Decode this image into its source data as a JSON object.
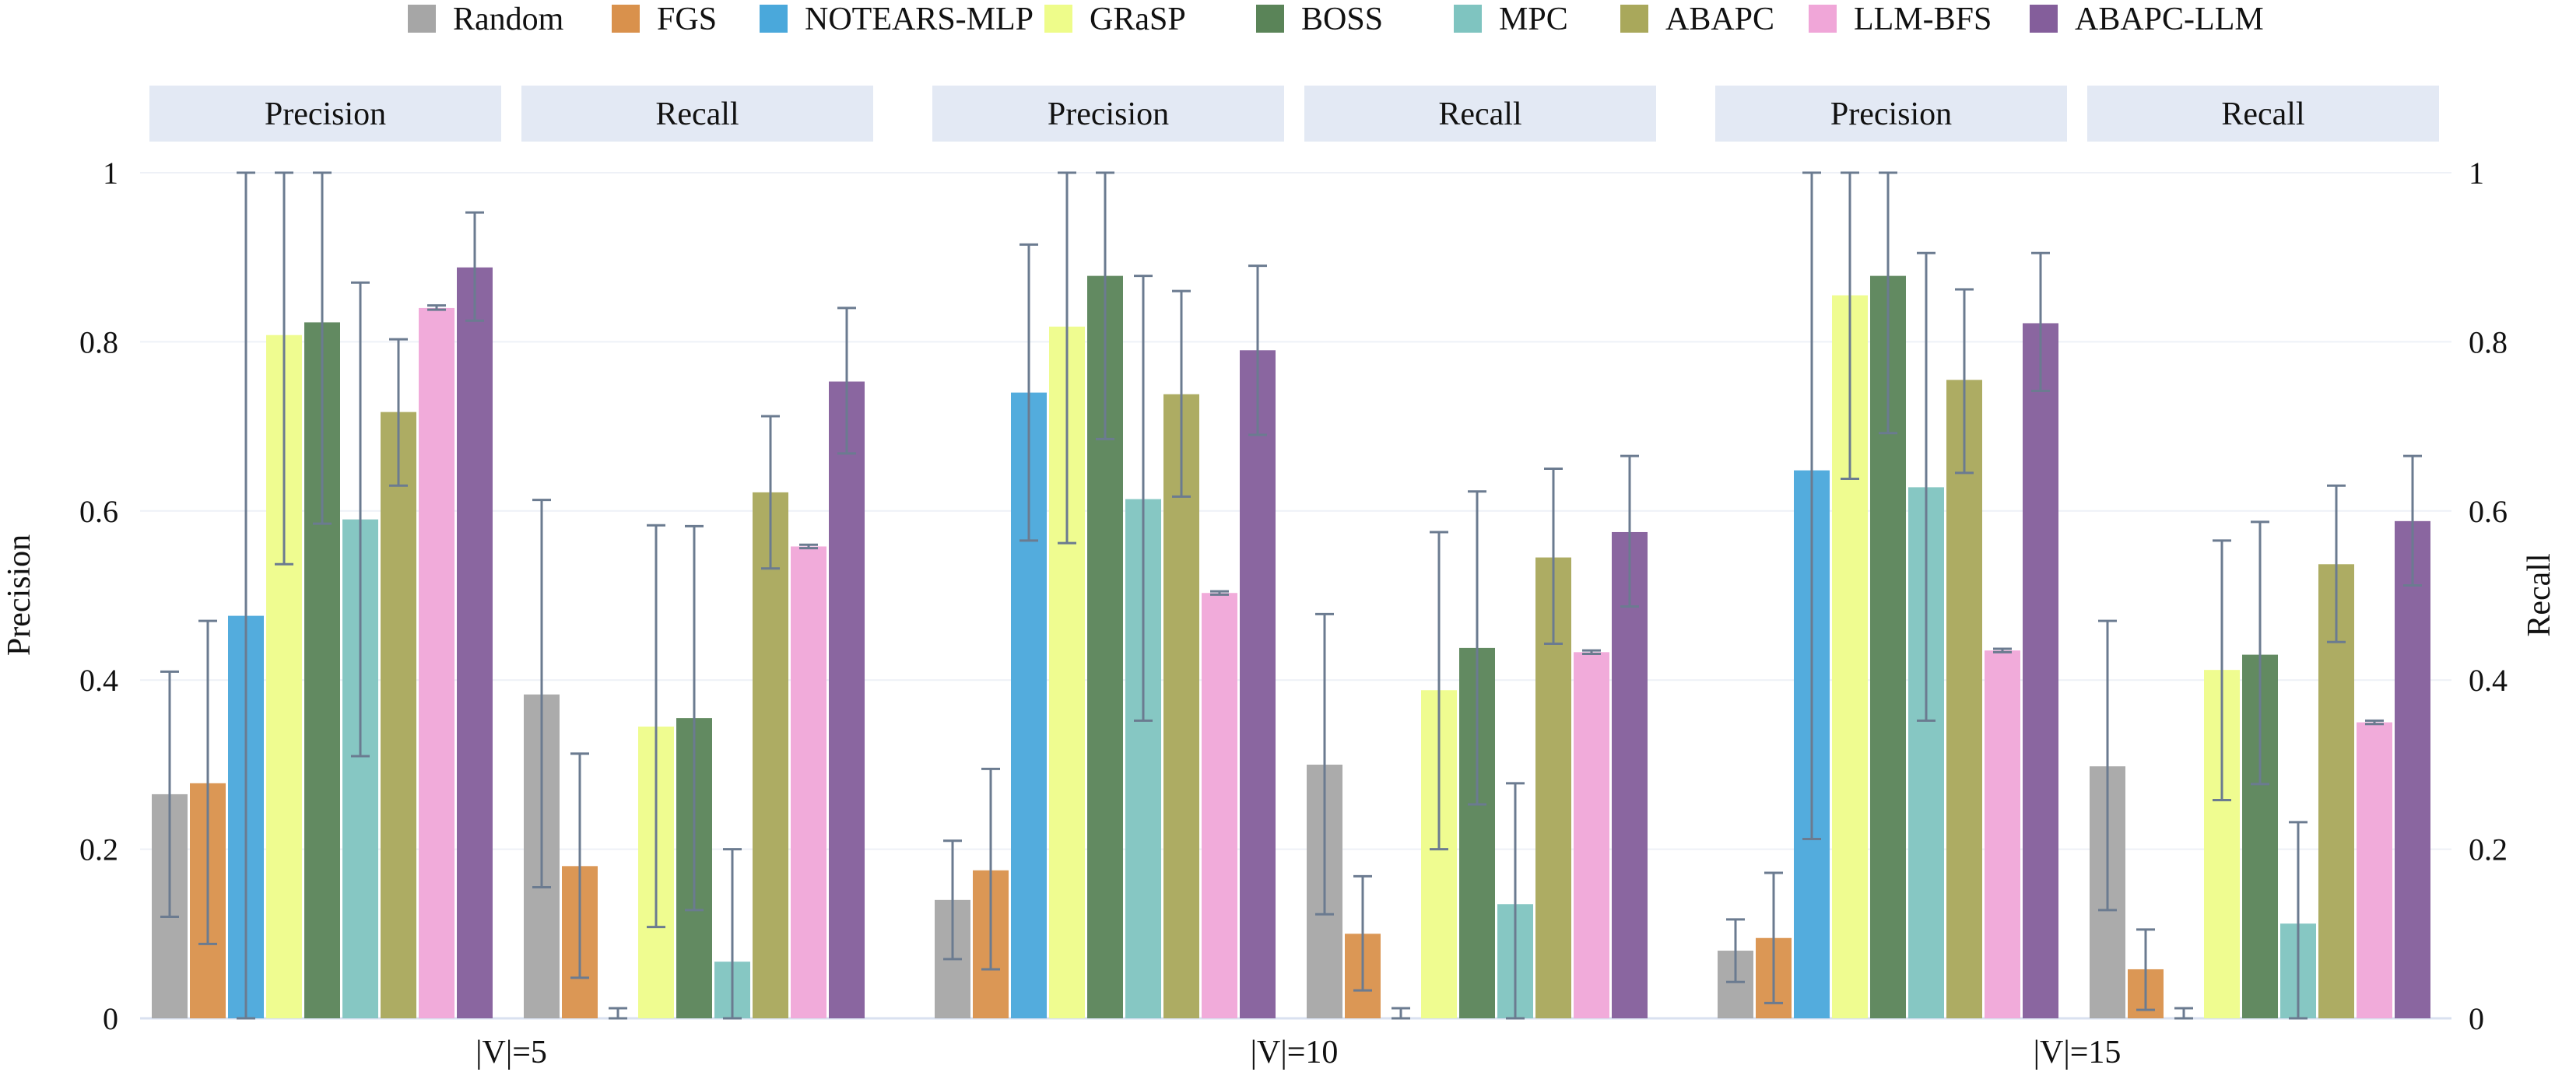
{
  "chart_data": {
    "type": "bar",
    "title": "",
    "ylabel_left": "Precision",
    "ylabel_right": "Recall",
    "ylim": [
      0,
      1
    ],
    "yticks": [
      0,
      0.2,
      0.4,
      0.6,
      0.8,
      1
    ],
    "ytick_labels": [
      "0",
      "0.2",
      "0.4",
      "0.6",
      "0.8",
      "1"
    ],
    "grid": true,
    "legend_position": "top",
    "methods": [
      {
        "name": "Random",
        "color": "#a6a6a6"
      },
      {
        "name": "FGS",
        "color": "#d9914c"
      },
      {
        "name": "NOTEARS-MLP",
        "color": "#4aa8db"
      },
      {
        "name": "GRaSP",
        "color": "#eefc8a"
      },
      {
        "name": "BOSS",
        "color": "#5a8458"
      },
      {
        "name": "MPC",
        "color": "#7fc4c0"
      },
      {
        "name": "ABAPC",
        "color": "#a9a85b"
      },
      {
        "name": "LLM-BFS",
        "color": "#f0a6d8"
      },
      {
        "name": "ABAPC-LLM",
        "color": "#845e9b"
      }
    ],
    "groups": [
      {
        "label": "|V|=5",
        "panels": [
          {
            "metric": "Precision",
            "values": [
              0.265,
              0.278,
              0.476,
              0.808,
              0.823,
              0.59,
              0.717,
              0.84,
              0.888
            ],
            "err_low": [
              0.12,
              0.088,
              0.0,
              0.537,
              0.585,
              0.31,
              0.63,
              0.838,
              0.825
            ],
            "err_high": [
              0.41,
              0.47,
              1.0,
              1.0,
              1.0,
              0.87,
              0.803,
              0.843,
              0.953
            ]
          },
          {
            "metric": "Recall",
            "values": [
              0.383,
              0.18,
              0.0,
              0.345,
              0.355,
              0.067,
              0.622,
              0.558,
              0.753
            ],
            "err_low": [
              0.155,
              0.048,
              0.0,
              0.108,
              0.128,
              0.0,
              0.532,
              0.556,
              0.668
            ],
            "err_high": [
              0.613,
              0.313,
              0.012,
              0.583,
              0.582,
              0.2,
              0.712,
              0.56,
              0.84
            ]
          }
        ]
      },
      {
        "label": "|V|=10",
        "panels": [
          {
            "metric": "Precision",
            "values": [
              0.14,
              0.175,
              0.74,
              0.818,
              0.878,
              0.614,
              0.738,
              0.503,
              0.79
            ],
            "err_low": [
              0.07,
              0.058,
              0.565,
              0.562,
              0.685,
              0.352,
              0.617,
              0.501,
              0.69
            ],
            "err_high": [
              0.21,
              0.295,
              0.915,
              1.0,
              1.0,
              0.878,
              0.86,
              0.505,
              0.89
            ]
          },
          {
            "metric": "Recall",
            "values": [
              0.3,
              0.1,
              0.0,
              0.388,
              0.438,
              0.135,
              0.545,
              0.433,
              0.575
            ],
            "err_low": [
              0.123,
              0.033,
              0.0,
              0.2,
              0.253,
              0.0,
              0.443,
              0.431,
              0.487
            ],
            "err_high": [
              0.478,
              0.168,
              0.012,
              0.575,
              0.623,
              0.278,
              0.65,
              0.435,
              0.665
            ]
          }
        ]
      },
      {
        "label": "|V|=15",
        "panels": [
          {
            "metric": "Precision",
            "values": [
              0.08,
              0.095,
              0.648,
              0.855,
              0.878,
              0.628,
              0.755,
              0.435,
              0.822
            ],
            "err_low": [
              0.043,
              0.018,
              0.212,
              0.638,
              0.692,
              0.352,
              0.645,
              0.433,
              0.742
            ],
            "err_high": [
              0.117,
              0.172,
              1.0,
              1.0,
              1.0,
              0.905,
              0.862,
              0.437,
              0.905
            ]
          },
          {
            "metric": "Recall",
            "values": [
              0.298,
              0.058,
              0.0,
              0.412,
              0.43,
              0.112,
              0.537,
              0.35,
              0.588
            ],
            "err_low": [
              0.128,
              0.01,
              0.0,
              0.258,
              0.277,
              0.0,
              0.445,
              0.348,
              0.512
            ],
            "err_high": [
              0.47,
              0.105,
              0.012,
              0.565,
              0.587,
              0.232,
              0.63,
              0.352,
              0.665
            ]
          }
        ]
      }
    ]
  }
}
